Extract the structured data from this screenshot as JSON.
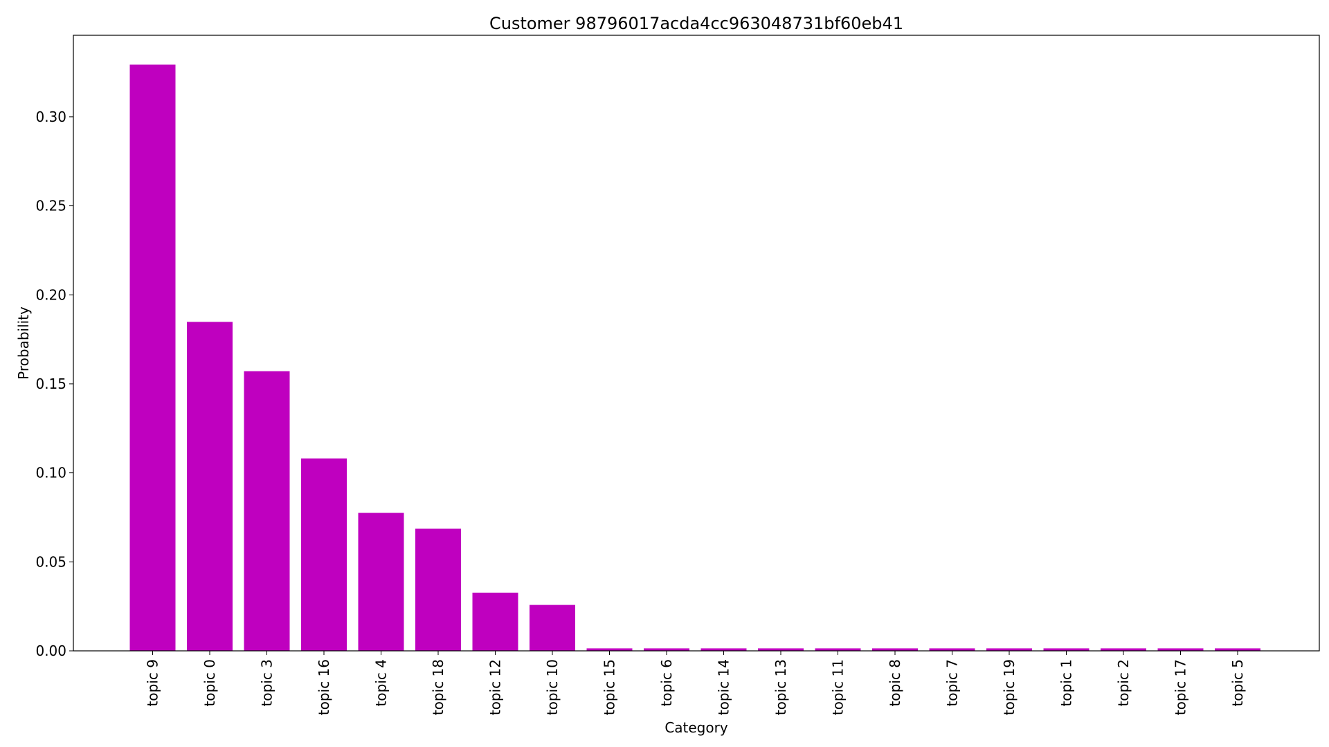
{
  "chart_data": {
    "type": "bar",
    "title": "Customer 98796017acda4cc963048731bf60eb41",
    "xlabel": "Category",
    "ylabel": "Probability",
    "categories": [
      "topic 9",
      "topic 0",
      "topic 3",
      "topic 16",
      "topic 4",
      "topic 18",
      "topic 12",
      "topic 10",
      "topic 15",
      "topic 6",
      "topic 14",
      "topic 13",
      "topic 11",
      "topic 8",
      "topic 7",
      "topic 19",
      "topic 1",
      "topic 2",
      "topic 17",
      "topic 5"
    ],
    "values": [
      0.3293,
      0.1848,
      0.1571,
      0.1081,
      0.0775,
      0.0686,
      0.0327,
      0.0258,
      0.0014,
      0.0014,
      0.0014,
      0.0014,
      0.0014,
      0.0014,
      0.0014,
      0.0014,
      0.0014,
      0.0014,
      0.0014,
      0.0014
    ],
    "ylim": [
      0,
      0.3458
    ],
    "yticks": [
      "0.00",
      "0.05",
      "0.10",
      "0.15",
      "0.20",
      "0.25",
      "0.30"
    ],
    "bar_color": "#bf00bf",
    "grid": false
  }
}
